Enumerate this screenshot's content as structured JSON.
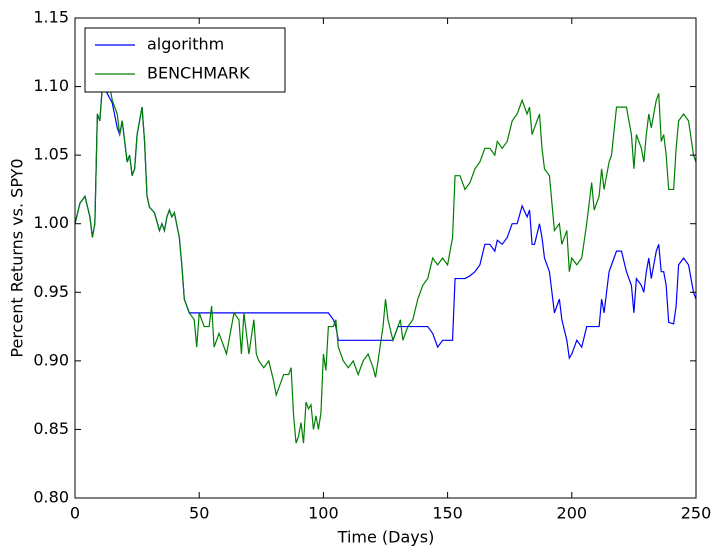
{
  "chart_data": {
    "type": "line",
    "xlabel": "Time (Days)",
    "ylabel": "Percent Returns vs. SPY0",
    "xlim": [
      0,
      250
    ],
    "xticks": [
      0,
      50,
      100,
      150,
      200,
      250
    ],
    "ylim": [
      0.8,
      1.15
    ],
    "yticks": [
      {
        "value": 0.8,
        "label": "0.80"
      },
      0.85,
      {
        "value": 0.9,
        "label": "0.90"
      },
      0.95,
      {
        "value": 1,
        "label": "1.00"
      },
      1.05,
      {
        "value": 1.1,
        "label": "1.10"
      },
      1.15
    ],
    "legend": "upper left",
    "x": [
      0,
      2,
      4,
      6,
      7,
      8,
      9,
      10,
      11,
      13,
      15,
      17,
      18,
      19,
      20,
      21,
      22,
      23,
      24,
      25,
      26,
      27,
      28,
      29,
      30,
      32,
      34,
      35,
      36,
      37,
      38,
      39,
      40,
      42,
      43,
      44,
      45,
      46,
      48,
      49,
      50,
      52,
      54,
      55,
      56,
      58,
      60,
      61,
      62,
      64,
      66,
      67,
      68,
      70,
      72,
      73,
      74,
      76,
      78,
      80,
      81,
      82,
      84,
      86,
      87,
      88,
      89,
      90,
      91,
      92,
      93,
      94,
      95,
      96,
      97,
      98,
      99,
      100,
      101,
      102,
      104,
      105,
      106,
      108,
      110,
      112,
      114,
      116,
      118,
      120,
      121,
      122,
      124,
      125,
      126,
      128,
      130,
      131,
      132,
      134,
      136,
      138,
      140,
      142,
      144,
      146,
      148,
      150,
      152,
      153,
      155,
      157,
      159,
      161,
      163,
      165,
      167,
      169,
      170,
      172,
      174,
      176,
      178,
      180,
      182,
      183,
      184,
      185,
      187,
      188,
      189,
      191,
      193,
      195,
      196,
      198,
      199,
      200,
      202,
      204,
      206,
      208,
      209,
      211,
      212,
      213,
      215,
      216,
      218,
      220,
      222,
      223,
      224,
      225,
      226,
      228,
      229,
      230,
      231,
      232,
      234,
      235,
      236,
      237,
      238,
      239,
      241,
      242,
      243,
      245,
      247,
      249,
      250
    ],
    "series": [
      {
        "name": "algorithm",
        "color": "#0000ff",
        "values": [
          1.0,
          1.015,
          1.02,
          1.005,
          0.99,
          1.0,
          1.08,
          1.075,
          1.1,
          1.095,
          1.088,
          1.07,
          1.065,
          1.075,
          1.06,
          1.045,
          1.05,
          1.035,
          1.04,
          1.065,
          1.075,
          1.085,
          1.06,
          1.02,
          1.012,
          1.008,
          0.995,
          1.0,
          0.995,
          1.005,
          1.01,
          1.005,
          1.008,
          0.99,
          0.97,
          0.945,
          0.94,
          0.935,
          0.935,
          0.935,
          0.935,
          0.935,
          0.935,
          0.935,
          0.935,
          0.935,
          0.935,
          0.935,
          0.935,
          0.935,
          0.935,
          0.935,
          0.935,
          0.935,
          0.935,
          0.935,
          0.935,
          0.935,
          0.935,
          0.935,
          0.935,
          0.935,
          0.935,
          0.935,
          0.935,
          0.935,
          0.935,
          0.935,
          0.935,
          0.935,
          0.935,
          0.935,
          0.935,
          0.935,
          0.935,
          0.935,
          0.935,
          0.935,
          0.935,
          0.935,
          0.93,
          0.925,
          0.915,
          0.915,
          0.915,
          0.915,
          0.915,
          0.915,
          0.915,
          0.915,
          0.915,
          0.915,
          0.915,
          0.915,
          0.915,
          0.915,
          0.925,
          0.925,
          0.925,
          0.925,
          0.925,
          0.925,
          0.925,
          0.925,
          0.92,
          0.91,
          0.915,
          0.915,
          0.915,
          0.96,
          0.96,
          0.96,
          0.962,
          0.965,
          0.97,
          0.985,
          0.985,
          0.98,
          0.988,
          0.985,
          0.99,
          1.0,
          1.0,
          1.013,
          1.005,
          1.01,
          0.985,
          0.985,
          1.0,
          0.99,
          0.975,
          0.965,
          0.935,
          0.945,
          0.93,
          0.915,
          0.902,
          0.905,
          0.915,
          0.91,
          0.925,
          0.925,
          0.925,
          0.925,
          0.945,
          0.935,
          0.965,
          0.97,
          0.98,
          0.98,
          0.965,
          0.96,
          0.955,
          0.935,
          0.96,
          0.955,
          0.95,
          0.965,
          0.975,
          0.96,
          0.98,
          0.985,
          0.965,
          0.965,
          0.955,
          0.928,
          0.927,
          0.94,
          0.97,
          0.975,
          0.97,
          0.95,
          0.945
        ]
      },
      {
        "name": "BENCHMARK",
        "color": "#008000",
        "values": [
          1.0,
          1.015,
          1.02,
          1.005,
          0.99,
          1.0,
          1.08,
          1.075,
          1.1,
          1.11,
          1.09,
          1.08,
          1.065,
          1.075,
          1.06,
          1.045,
          1.05,
          1.035,
          1.04,
          1.065,
          1.075,
          1.085,
          1.06,
          1.02,
          1.012,
          1.008,
          0.995,
          1.0,
          0.995,
          1.005,
          1.01,
          1.005,
          1.008,
          0.99,
          0.97,
          0.945,
          0.94,
          0.935,
          0.93,
          0.91,
          0.935,
          0.925,
          0.925,
          0.94,
          0.91,
          0.92,
          0.91,
          0.905,
          0.915,
          0.935,
          0.93,
          0.905,
          0.935,
          0.905,
          0.93,
          0.905,
          0.9,
          0.895,
          0.9,
          0.885,
          0.875,
          0.88,
          0.89,
          0.89,
          0.895,
          0.86,
          0.84,
          0.845,
          0.855,
          0.84,
          0.87,
          0.865,
          0.868,
          0.85,
          0.86,
          0.85,
          0.862,
          0.905,
          0.893,
          0.925,
          0.925,
          0.93,
          0.91,
          0.9,
          0.895,
          0.9,
          0.89,
          0.9,
          0.905,
          0.895,
          0.888,
          0.9,
          0.925,
          0.945,
          0.93,
          0.915,
          0.925,
          0.93,
          0.915,
          0.925,
          0.93,
          0.945,
          0.955,
          0.96,
          0.975,
          0.97,
          0.975,
          0.97,
          0.99,
          1.035,
          1.035,
          1.025,
          1.03,
          1.04,
          1.045,
          1.055,
          1.055,
          1.05,
          1.06,
          1.055,
          1.06,
          1.075,
          1.08,
          1.09,
          1.08,
          1.085,
          1.065,
          1.07,
          1.08,
          1.055,
          1.04,
          1.035,
          0.995,
          1.0,
          0.985,
          0.995,
          0.965,
          0.975,
          0.97,
          0.975,
          1.0,
          1.03,
          1.01,
          1.02,
          1.04,
          1.025,
          1.045,
          1.05,
          1.085,
          1.085,
          1.085,
          1.075,
          1.065,
          1.04,
          1.065,
          1.055,
          1.045,
          1.065,
          1.08,
          1.07,
          1.09,
          1.095,
          1.06,
          1.065,
          1.05,
          1.025,
          1.025,
          1.055,
          1.075,
          1.08,
          1.075,
          1.05,
          1.045
        ]
      }
    ]
  }
}
